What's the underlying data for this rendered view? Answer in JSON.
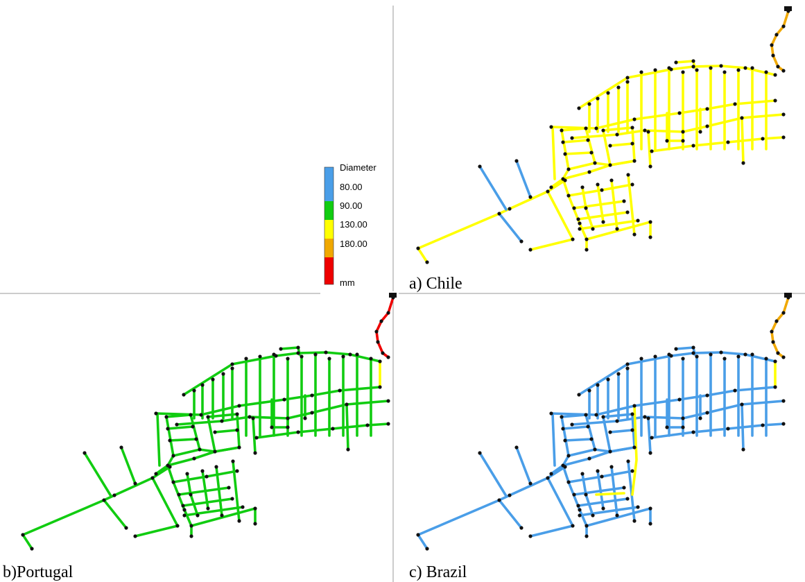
{
  "legend": {
    "title": "Diameter",
    "unit": "mm",
    "classes": [
      {
        "label": "80.00",
        "color": "#4a9ee8"
      },
      {
        "label": "90.00",
        "color": "#11cc11"
      },
      {
        "label": "130.00",
        "color": "#ffff00"
      },
      {
        "label": "180.00",
        "color": "#f0a800"
      },
      {
        "label": "",
        "color": "#ee0000"
      }
    ],
    "top_color": "#4a9ee8"
  },
  "panels": [
    {
      "caption": "a) Chile",
      "main_color": "#ffff00",
      "tail_color": "#ffff00",
      "spur_color": "#4a9ee8",
      "riser_color": "#f0a800",
      "accent_color": "#f0a800"
    },
    {
      "caption": "b)Portugal",
      "main_color": "#11cc11",
      "tail_color": "#11cc11",
      "spur_color": "#11cc11",
      "riser_color": "#ee0000",
      "accent_color": "#ffff00"
    },
    {
      "caption": "c) Brazil",
      "main_color": "#4a9ee8",
      "tail_color": "#4a9ee8",
      "spur_color": "#4a9ee8",
      "riser_color": "#f0a800",
      "accent_color": "#ffff00"
    }
  ]
}
